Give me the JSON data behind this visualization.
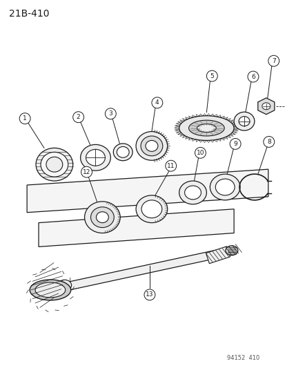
{
  "title": "21B-410",
  "watermark": "94152  410",
  "background_color": "#ffffff",
  "line_color": "#1a1a1a",
  "figsize": [
    4.14,
    5.33
  ],
  "dpi": 100
}
